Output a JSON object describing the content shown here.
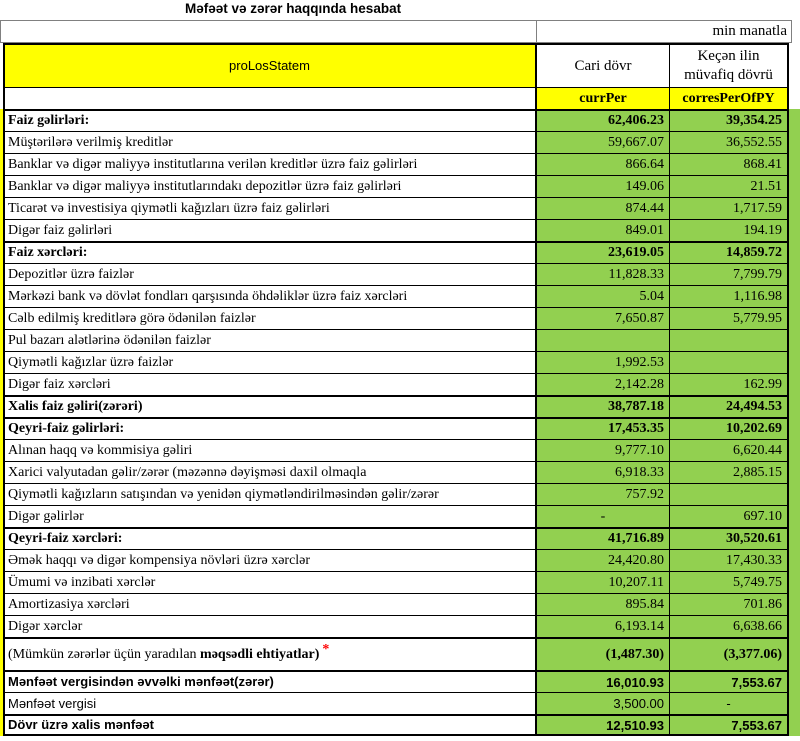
{
  "title": "Məfəət və zərər haqqında hesabat",
  "unit_note": "min manatla",
  "header": {
    "id_label": "proLosStatem",
    "col_current": "Cari dövr",
    "col_previous_line1": "Keçən ilin",
    "col_previous_line2": "müvafiq dövrü",
    "sub_current": "currPer",
    "sub_previous": "corresPerOfPY"
  },
  "colors": {
    "header_yellow": "#FFFF00",
    "value_green": "#92D050",
    "asterisk_red": "#FF0000",
    "grid_black": "#000000"
  },
  "rows": [
    {
      "label": "Faiz gəlirləri:",
      "curr": "62,406.23",
      "prev": "39,354.25",
      "bold": true,
      "thick": true
    },
    {
      "label": "Müştərilərə verilmiş kreditlər",
      "curr": "59,667.07",
      "prev": "36,552.55"
    },
    {
      "label": "Banklar və digər maliyyə institutlarına verilən kreditlər üzrə faiz gəlirləri",
      "curr": "866.64",
      "prev": "868.41"
    },
    {
      "label": "Banklar və digər maliyyə institutlarındakı depozitlər üzrə faiz gəlirləri",
      "curr": "149.06",
      "prev": "21.51"
    },
    {
      "label": "Ticarət və investisiya qiymətli kağızları üzrə faiz gəlirləri",
      "curr": "874.44",
      "prev": "1,717.59"
    },
    {
      "label": "Digər faiz gəlirləri",
      "curr": "849.01",
      "prev": "194.19"
    },
    {
      "label": "Faiz xərcləri:",
      "curr": "23,619.05",
      "prev": "14,859.72",
      "bold": true,
      "thick": true
    },
    {
      "label": "Depozitlər üzrə faizlər",
      "curr": "11,828.33",
      "prev": "7,799.79"
    },
    {
      "label": "Mərkəzi bank və dövlət fondları qarşısında öhdəliklər üzrə faiz xərcləri",
      "curr": "5.04",
      "prev": "1,116.98"
    },
    {
      "label": "Cəlb edilmiş kreditlərə görə ödənilən faizlər",
      "curr": "7,650.87",
      "prev": "5,779.95"
    },
    {
      "label": "Pul bazarı alətlərinə ödənilən faizlər",
      "curr": "",
      "prev": ""
    },
    {
      "label": "Qiymətli kağızlar üzrə faizlər",
      "curr": "1,992.53",
      "prev": ""
    },
    {
      "label": "Digər faiz xərcləri",
      "curr": "2,142.28",
      "prev": "162.99"
    },
    {
      "label": "Xalis faiz gəliri(zərəri)",
      "curr": "38,787.18",
      "prev": "24,494.53",
      "bold": true,
      "thick": true
    },
    {
      "label": "Qeyri-faiz gəlirləri:",
      "curr": "17,453.35",
      "prev": "10,202.69",
      "bold": true,
      "thick": true
    },
    {
      "label": "Alınan haqq və kommisiya gəliri",
      "curr": "9,777.10",
      "prev": "6,620.44"
    },
    {
      "label": "Xarici valyutadan gəlir/zərər (məzənnə dəyişməsi daxil olmaqla",
      "curr": "6,918.33",
      "prev": "2,885.15"
    },
    {
      "label": "Qiymətli kağızların satışından və yenidən qiymətləndirilməsindən gəlir/zərər",
      "curr": "757.92",
      "prev": ""
    },
    {
      "label": "Digər gəlirlər",
      "curr": "-",
      "prev": "697.10"
    },
    {
      "label": "Qeyri-faiz xərcləri:",
      "curr": "41,716.89",
      "prev": "30,520.61",
      "bold": true,
      "thick": true
    },
    {
      "label": "Əmək haqqı və digər kompensiya növləri üzrə xərclər",
      "curr": "24,420.80",
      "prev": "17,430.33"
    },
    {
      "label": "Ümumi və inzibati xərclər",
      "curr": "10,207.11",
      "prev": "5,749.75"
    },
    {
      "label": "Amortizasiya xərcləri",
      "curr": "895.84",
      "prev": "701.86"
    },
    {
      "label": "Digər xərclər",
      "curr": "6,193.14",
      "prev": "6,638.66"
    },
    {
      "label": "(Mümkün zərərlər üçün yaradılan ",
      "label_bold": "məqsədli ehtiyatlar)",
      "asterisk": "*",
      "curr": "(1,487.30)",
      "prev": "(3,377.06)",
      "numbold": true,
      "thick": true,
      "tall": true
    },
    {
      "label": "Mənfəət vergisindən əvvəlki mənfəət(zərər)",
      "curr": "16,010.93",
      "prev": "7,553.67",
      "bold": true,
      "thick": true,
      "sans": true
    },
    {
      "label": "Mənfəət vergisi",
      "curr": "3,500.00",
      "prev": "-",
      "sans": true
    },
    {
      "label": "Dövr üzrə xalis mənfəət",
      "curr": "12,510.93",
      "prev": "7,553.67",
      "bold": true,
      "thick": true,
      "sans": true
    }
  ]
}
